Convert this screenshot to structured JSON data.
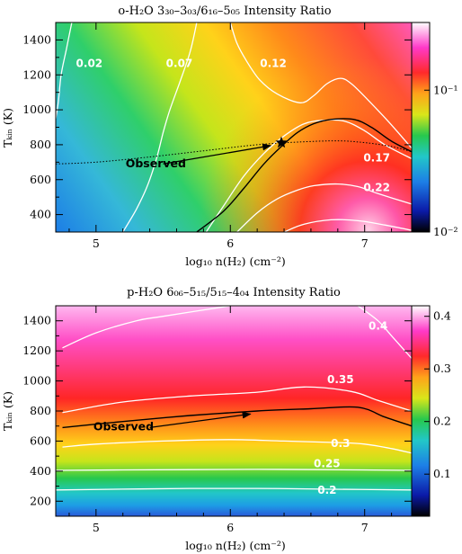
{
  "chart_data": [
    {
      "type": "heatmap",
      "title": "o-H₂O 3₃₀–3₀₃/6₁₆–5₀₅ Intensity Ratio",
      "xlabel": "log₁₀ n(H₂) (cm⁻²)",
      "ylabel": "Tₖᵢₙ (K)",
      "xlim": [
        4.7,
        7.35
      ],
      "ylim": [
        300,
        1500
      ],
      "xticks": [
        5,
        6,
        7
      ],
      "yticks": [
        400,
        600,
        800,
        1000,
        1200,
        1400
      ],
      "colorbar": {
        "scale": "log",
        "range": [
          0.01,
          0.3
        ],
        "ticks": [
          {
            "label": "10⁻¹",
            "value": 0.1
          },
          {
            "label": "10⁻²",
            "value": 0.01
          }
        ]
      },
      "contours": [
        {
          "label": "0.02",
          "value": 0.02,
          "points": [
            [
              4.82,
              1500
            ],
            [
              4.78,
              1350
            ],
            [
              4.74,
              1200
            ],
            [
              4.72,
              1050
            ],
            [
              4.7,
              950
            ]
          ]
        },
        {
          "label": "0.07",
          "value": 0.07,
          "points": [
            [
              5.75,
              1500
            ],
            [
              5.7,
              1330
            ],
            [
              5.62,
              1150
            ],
            [
              5.55,
              1000
            ],
            [
              5.5,
              870
            ],
            [
              5.45,
              720
            ],
            [
              5.38,
              560
            ],
            [
              5.3,
              430
            ],
            [
              5.2,
              300
            ]
          ]
        },
        {
          "label": "0.12",
          "value": 0.12,
          "points": [
            [
              6.0,
              1500
            ],
            [
              6.05,
              1380
            ],
            [
              6.12,
              1280
            ],
            [
              6.22,
              1170
            ],
            [
              6.35,
              1090
            ],
            [
              6.52,
              1040
            ],
            [
              6.62,
              1080
            ],
            [
              6.72,
              1150
            ],
            [
              6.82,
              1180
            ],
            [
              6.9,
              1150
            ],
            [
              7.02,
              1060
            ],
            [
              7.18,
              930
            ],
            [
              7.35,
              780
            ]
          ]
        },
        {
          "label": "0.17",
          "value": 0.17,
          "points": [
            [
              5.82,
              300
            ],
            [
              5.95,
              450
            ],
            [
              6.1,
              620
            ],
            [
              6.25,
              750
            ],
            [
              6.4,
              850
            ],
            [
              6.55,
              920
            ],
            [
              6.7,
              940
            ],
            [
              6.85,
              935
            ],
            [
              7.0,
              880
            ],
            [
              7.15,
              800
            ],
            [
              7.35,
              720
            ]
          ]
        },
        {
          "label": "0.22",
          "value": 0.22,
          "points": [
            [
              6.05,
              300
            ],
            [
              6.2,
              410
            ],
            [
              6.35,
              490
            ],
            [
              6.5,
              540
            ],
            [
              6.62,
              565
            ],
            [
              6.8,
              575
            ],
            [
              6.95,
              560
            ],
            [
              7.1,
              520
            ],
            [
              7.35,
              460
            ]
          ]
        },
        {
          "label": "",
          "value": 0.27,
          "points": [
            [
              6.4,
              300
            ],
            [
              6.55,
              345
            ],
            [
              6.75,
              370
            ],
            [
              6.95,
              365
            ],
            [
              7.15,
              340
            ],
            [
              7.35,
              310
            ]
          ]
        }
      ],
      "contour_labels": [
        {
          "text": "0.02",
          "x": 4.95,
          "y": 1245
        },
        {
          "text": "0.07",
          "x": 5.62,
          "y": 1245
        },
        {
          "text": "0.12",
          "x": 6.32,
          "y": 1245
        },
        {
          "text": "0.17",
          "x": 7.09,
          "y": 705
        },
        {
          "text": "0.22",
          "x": 7.09,
          "y": 535
        }
      ],
      "observed_curve": [
        [
          4.7,
          690
        ],
        [
          5.0,
          700
        ],
        [
          5.4,
          730
        ],
        [
          5.8,
          765
        ],
        [
          6.2,
          800
        ],
        [
          6.5,
          815
        ],
        [
          6.8,
          822
        ],
        [
          7.0,
          812
        ],
        [
          7.2,
          790
        ],
        [
          7.35,
          760
        ]
      ],
      "observed_band": [
        [
          5.75,
          300
        ],
        [
          5.95,
          420
        ],
        [
          6.1,
          550
        ],
        [
          6.25,
          690
        ],
        [
          6.38,
          790
        ],
        [
          6.5,
          870
        ],
        [
          6.62,
          920
        ],
        [
          6.75,
          945
        ],
        [
          6.92,
          945
        ],
        [
          7.05,
          900
        ],
        [
          7.2,
          820
        ],
        [
          7.35,
          760
        ]
      ],
      "annotation": {
        "text": "Observed",
        "text_at": [
          5.22,
          670
        ],
        "arrow_from": [
          5.5,
          690
        ],
        "arrow_to": [
          6.3,
          795
        ]
      },
      "marker": {
        "symbol": "star",
        "x": 6.38,
        "y": 812
      }
    },
    {
      "type": "heatmap",
      "title": "p-H₂O 6₀₆–5₁₅/5₁₅–4₀₄ Intensity Ratio",
      "xlabel": "log₁₀ n(H₂) (cm⁻²)",
      "ylabel": "Tₖᵢₙ (K)",
      "xlim": [
        4.7,
        7.35
      ],
      "ylim": [
        100,
        1500
      ],
      "xticks": [
        5,
        6,
        7
      ],
      "yticks": [
        200,
        400,
        600,
        800,
        1000,
        1200,
        1400
      ],
      "colorbar": {
        "scale": "linear",
        "range": [
          0.02,
          0.42
        ],
        "ticks": [
          {
            "label": "0.1",
            "value": 0.1
          },
          {
            "label": "0.2",
            "value": 0.2
          },
          {
            "label": "0.3",
            "value": 0.3
          },
          {
            "label": "0.4",
            "value": 0.4
          }
        ]
      },
      "contours": [
        {
          "label": "0.2",
          "value": 0.2,
          "points": [
            [
              4.7,
              275
            ],
            [
              5.2,
              280
            ],
            [
              5.7,
              285
            ],
            [
              6.2,
              285
            ],
            [
              6.7,
              280
            ],
            [
              7.35,
              275
            ]
          ]
        },
        {
          "label": "0.25",
          "value": 0.25,
          "points": [
            [
              4.7,
              405
            ],
            [
              5.2,
              408
            ],
            [
              5.7,
              410
            ],
            [
              6.2,
              412
            ],
            [
              6.7,
              410
            ],
            [
              7.35,
              405
            ]
          ]
        },
        {
          "label": "0.3",
          "value": 0.3,
          "points": [
            [
              4.75,
              560
            ],
            [
              5.0,
              580
            ],
            [
              5.5,
              600
            ],
            [
              6.0,
              610
            ],
            [
              6.4,
              600
            ],
            [
              6.8,
              590
            ],
            [
              7.0,
              580
            ],
            [
              7.2,
              550
            ],
            [
              7.35,
              520
            ]
          ]
        },
        {
          "label": "0.35",
          "value": 0.35,
          "points": [
            [
              4.75,
              790
            ],
            [
              5.2,
              860
            ],
            [
              5.7,
              900
            ],
            [
              6.2,
              925
            ],
            [
              6.55,
              960
            ],
            [
              6.9,
              930
            ],
            [
              7.1,
              870
            ],
            [
              7.35,
              800
            ]
          ]
        },
        {
          "label": "0.4",
          "value": 0.4,
          "points": [
            [
              4.75,
              1220
            ],
            [
              5.0,
              1320
            ],
            [
              5.3,
              1400
            ],
            [
              5.5,
              1430
            ],
            [
              6.0,
              1500
            ]
          ]
        },
        {
          "label": "",
          "value": 0.4,
          "points": [
            [
              6.95,
              1500
            ],
            [
              7.1,
              1400
            ],
            [
              7.2,
              1300
            ],
            [
              7.35,
              1150
            ]
          ]
        }
      ],
      "contour_labels": [
        {
          "text": "0.4",
          "x": 7.1,
          "y": 1340
        },
        {
          "text": "0.35",
          "x": 6.82,
          "y": 985
        },
        {
          "text": "0.3",
          "x": 6.82,
          "y": 560
        },
        {
          "text": "0.25",
          "x": 6.72,
          "y": 425
        },
        {
          "text": "0.2",
          "x": 6.72,
          "y": 250
        }
      ],
      "observed_curve": [
        [
          4.75,
          690
        ],
        [
          5.2,
          730
        ],
        [
          5.7,
          770
        ],
        [
          6.2,
          800
        ],
        [
          6.6,
          815
        ],
        [
          6.95,
          825
        ],
        [
          7.15,
          760
        ],
        [
          7.35,
          700
        ]
      ],
      "annotation": {
        "text": "Observed",
        "text_at": [
          4.98,
          670
        ],
        "arrow_from": [
          5.4,
          690
        ],
        "arrow_to": [
          6.15,
          780
        ]
      }
    }
  ]
}
